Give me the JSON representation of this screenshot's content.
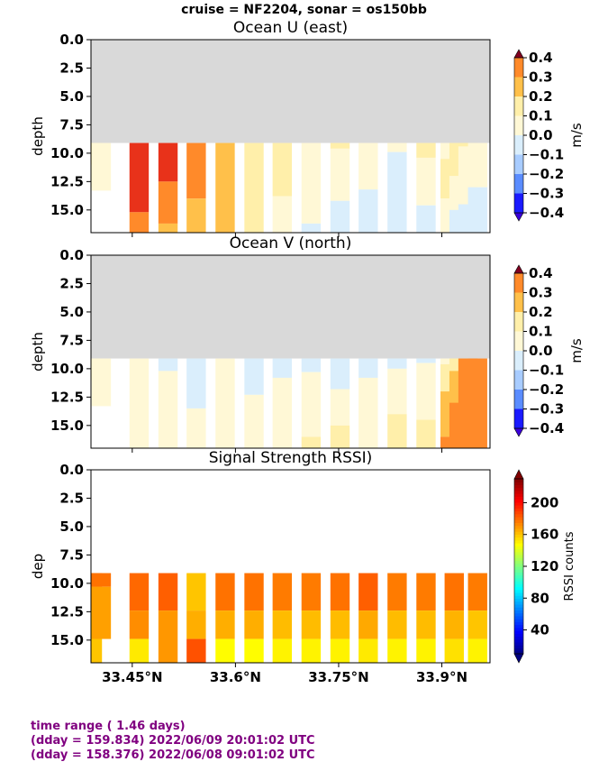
{
  "suptitle": "cruise = NF2204,  sonar = os150bb",
  "footer": {
    "line1": "time range ( 1.46 days)",
    "line2": "(dday = 159.834) 2022/06/09 20:01:02 UTC",
    "line3": "(dday = 158.376) 2022/06/08 09:01:02 UTC"
  },
  "colors": {
    "missing": "#d9d9d9",
    "velocity_levels": [
      "#3a00d9",
      "#1a1aff",
      "#5a8cff",
      "#a8ccff",
      "#daeefc",
      "#fff8d6",
      "#ffefaa",
      "#ffc04a",
      "#ff8a2a",
      "#e8321a",
      "#800020"
    ],
    "velocity_bounds": [
      -0.4,
      -0.3,
      -0.2,
      -0.1,
      0.0,
      0.1,
      0.2,
      0.3,
      0.4
    ]
  },
  "chart_data": [
    {
      "type": "heatmap",
      "title": "Ocean U (east)",
      "ylabel": "depth",
      "colorbar_label": "m/s",
      "colorbar_ticks": [
        "0.4",
        "0.3",
        "0.2",
        "0.1",
        "0.0",
        "−0.1",
        "−0.2",
        "−0.3",
        "−0.4"
      ],
      "xlim": [
        33.39,
        33.97
      ],
      "ylim": [
        17,
        0
      ],
      "yticks": [
        "0.0",
        "2.5",
        "5.0",
        "7.5",
        "10.0",
        "12.5",
        "15.0"
      ],
      "data_depth_range": [
        9.1,
        17
      ],
      "profiles": [
        {
          "lat": 33.392,
          "segments": [
            [
              9.1,
              11.0,
              0.15
            ],
            [
              11.0,
              13.0,
              0.05
            ]
          ]
        },
        {
          "lat": 33.405,
          "segments": [
            [
              9.1,
              13.3,
              0.05
            ]
          ]
        },
        {
          "lat": 33.46,
          "segments": [
            [
              9.1,
              15.2,
              0.45
            ],
            [
              15.2,
              17,
              0.35
            ]
          ]
        },
        {
          "lat": 33.502,
          "segments": [
            [
              9.1,
              12.5,
              0.45
            ],
            [
              12.5,
              16.2,
              0.35
            ],
            [
              16.2,
              17,
              0.25
            ]
          ]
        },
        {
          "lat": 33.543,
          "segments": [
            [
              9.1,
              14.0,
              0.35
            ],
            [
              14.0,
              17,
              0.25
            ]
          ]
        },
        {
          "lat": 33.585,
          "segments": [
            [
              9.1,
              17,
              0.25
            ]
          ]
        },
        {
          "lat": 33.627,
          "segments": [
            [
              9.1,
              17,
              0.15
            ]
          ]
        },
        {
          "lat": 33.668,
          "segments": [
            [
              9.1,
              13.8,
              0.15
            ],
            [
              13.8,
              17,
              0.05
            ]
          ]
        },
        {
          "lat": 33.71,
          "segments": [
            [
              9.1,
              16.2,
              0.05
            ],
            [
              16.2,
              17,
              -0.05
            ]
          ]
        },
        {
          "lat": 33.752,
          "segments": [
            [
              9.1,
              9.6,
              0.15
            ],
            [
              9.6,
              14.2,
              0.05
            ],
            [
              14.2,
              17,
              -0.05
            ]
          ]
        },
        {
          "lat": 33.793,
          "segments": [
            [
              9.1,
              13.2,
              0.05
            ],
            [
              13.2,
              17,
              -0.05
            ]
          ]
        },
        {
          "lat": 33.835,
          "segments": [
            [
              9.1,
              9.9,
              0.05
            ],
            [
              9.9,
              17,
              -0.05
            ]
          ]
        },
        {
          "lat": 33.877,
          "segments": [
            [
              9.1,
              10.4,
              0.15
            ],
            [
              10.4,
              14.6,
              0.05
            ],
            [
              14.6,
              17,
              -0.05
            ]
          ]
        },
        {
          "lat": 33.912,
          "segments": [
            [
              9.1,
              10.5,
              0.05
            ],
            [
              10.5,
              14.0,
              0.15
            ],
            [
              14.0,
              17,
              0.05
            ]
          ]
        },
        {
          "lat": 33.925,
          "segments": [
            [
              9.1,
              12.0,
              0.15
            ],
            [
              12.0,
              15.0,
              0.05
            ],
            [
              15.0,
              17,
              -0.05
            ]
          ]
        },
        {
          "lat": 33.938,
          "segments": [
            [
              9.1,
              9.4,
              0.15
            ],
            [
              9.4,
              14.5,
              0.05
            ],
            [
              14.5,
              17,
              -0.05
            ]
          ]
        },
        {
          "lat": 33.952,
          "segments": [
            [
              9.1,
              13.0,
              0.05
            ],
            [
              13.0,
              17,
              -0.05
            ]
          ]
        }
      ]
    },
    {
      "type": "heatmap",
      "title": "Ocean V (north)",
      "ylabel": "depth",
      "colorbar_label": "m/s",
      "colorbar_ticks": [
        "0.4",
        "0.3",
        "0.2",
        "0.1",
        "0.0",
        "−0.1",
        "−0.2",
        "−0.3",
        "−0.4"
      ],
      "xlim": [
        33.39,
        33.97
      ],
      "ylim": [
        17,
        0
      ],
      "yticks": [
        "0.0",
        "2.5",
        "5.0",
        "7.5",
        "10.0",
        "12.5",
        "15.0"
      ],
      "data_depth_range": [
        9.1,
        17
      ],
      "profiles": [
        {
          "lat": 33.392,
          "segments": [
            [
              9.1,
              11.0,
              0.05
            ]
          ]
        },
        {
          "lat": 33.405,
          "segments": [
            [
              9.1,
              13.3,
              0.05
            ]
          ]
        },
        {
          "lat": 33.46,
          "segments": [
            [
              9.1,
              17,
              0.05
            ]
          ]
        },
        {
          "lat": 33.502,
          "segments": [
            [
              9.1,
              10.2,
              -0.05
            ],
            [
              10.2,
              17,
              0.05
            ]
          ]
        },
        {
          "lat": 33.543,
          "segments": [
            [
              9.1,
              13.5,
              -0.05
            ],
            [
              13.5,
              17,
              0.05
            ]
          ]
        },
        {
          "lat": 33.585,
          "segments": [
            [
              9.1,
              17,
              0.05
            ]
          ]
        },
        {
          "lat": 33.627,
          "segments": [
            [
              9.1,
              12.3,
              -0.05
            ],
            [
              12.3,
              17,
              0.05
            ]
          ]
        },
        {
          "lat": 33.668,
          "segments": [
            [
              9.1,
              10.8,
              -0.05
            ],
            [
              10.8,
              17,
              0.05
            ]
          ]
        },
        {
          "lat": 33.71,
          "segments": [
            [
              9.1,
              10.3,
              -0.05
            ],
            [
              10.3,
              16.0,
              0.05
            ],
            [
              16.0,
              17,
              0.15
            ]
          ]
        },
        {
          "lat": 33.752,
          "segments": [
            [
              9.1,
              11.8,
              -0.05
            ],
            [
              11.8,
              15.0,
              0.05
            ],
            [
              15.0,
              17,
              0.15
            ]
          ]
        },
        {
          "lat": 33.793,
          "segments": [
            [
              9.1,
              10.8,
              -0.05
            ],
            [
              10.8,
              17,
              0.05
            ]
          ]
        },
        {
          "lat": 33.835,
          "segments": [
            [
              9.1,
              10.0,
              -0.05
            ],
            [
              10.0,
              14.0,
              0.05
            ],
            [
              14.0,
              17,
              0.15
            ]
          ]
        },
        {
          "lat": 33.877,
          "segments": [
            [
              9.1,
              9.5,
              -0.05
            ],
            [
              9.5,
              14.5,
              0.05
            ],
            [
              14.5,
              17,
              0.15
            ]
          ]
        },
        {
          "lat": 33.912,
          "segments": [
            [
              9.1,
              9.6,
              0.05
            ],
            [
              9.6,
              12.0,
              0.15
            ],
            [
              12.0,
              16.0,
              0.25
            ],
            [
              16.0,
              17,
              0.35
            ]
          ]
        },
        {
          "lat": 33.925,
          "segments": [
            [
              9.1,
              10.2,
              0.15
            ],
            [
              10.2,
              13.0,
              0.25
            ],
            [
              13.0,
              17,
              0.35
            ]
          ]
        },
        {
          "lat": 33.938,
          "segments": [
            [
              9.1,
              17,
              0.35
            ]
          ]
        },
        {
          "lat": 33.952,
          "segments": [
            [
              9.1,
              17,
              0.35
            ]
          ]
        }
      ]
    },
    {
      "type": "heatmap",
      "title": "Signal Strength RSSI)",
      "ylabel": "dep",
      "colorbar_label": "RSSI counts",
      "colorbar_ticks": [
        "200",
        "160",
        "120",
        "80",
        "40"
      ],
      "colorbar_range": [
        10,
        230
      ],
      "xlim": [
        33.39,
        33.97
      ],
      "ylim": [
        17,
        0
      ],
      "yticks": [
        "0.0",
        "2.5",
        "5.0",
        "7.5",
        "10.0",
        "12.5",
        "15.0"
      ],
      "xticks": [
        "33.45°N",
        "33.6°N",
        "33.75°N",
        "33.9°N"
      ],
      "xtick_values": [
        33.45,
        33.6,
        33.75,
        33.9
      ],
      "data_depth_range": [
        9.1,
        17
      ],
      "profiles": [
        {
          "lat": 33.392,
          "segments": [
            [
              9.1,
              10.3,
              178
            ],
            [
              10.3,
              12.4,
              170
            ],
            [
              12.4,
              17,
              160
            ]
          ]
        },
        {
          "lat": 33.405,
          "segments": [
            [
              9.1,
              10.3,
              178
            ],
            [
              10.3,
              14.9,
              168
            ]
          ]
        },
        {
          "lat": 33.46,
          "segments": [
            [
              9.1,
              12.4,
              180
            ],
            [
              12.4,
              14.9,
              172
            ],
            [
              14.9,
              17,
              152
            ]
          ]
        },
        {
          "lat": 33.502,
          "segments": [
            [
              9.1,
              12.4,
              182
            ],
            [
              12.4,
              17,
              170
            ]
          ]
        },
        {
          "lat": 33.543,
          "segments": [
            [
              9.1,
              12.4,
              160
            ],
            [
              12.4,
              14.9,
              165
            ],
            [
              14.9,
              17,
              185
            ]
          ]
        },
        {
          "lat": 33.585,
          "segments": [
            [
              9.1,
              12.4,
              178
            ],
            [
              12.4,
              14.9,
              165
            ],
            [
              14.9,
              17,
              148
            ]
          ]
        },
        {
          "lat": 33.627,
          "segments": [
            [
              9.1,
              12.4,
              178
            ],
            [
              12.4,
              14.9,
              165
            ],
            [
              14.9,
              17,
              148
            ]
          ]
        },
        {
          "lat": 33.668,
          "segments": [
            [
              9.1,
              12.4,
              176
            ],
            [
              12.4,
              14.9,
              162
            ],
            [
              14.9,
              17,
              150
            ]
          ]
        },
        {
          "lat": 33.71,
          "segments": [
            [
              9.1,
              12.4,
              176
            ],
            [
              12.4,
              14.9,
              162
            ],
            [
              14.9,
              17,
              150
            ]
          ]
        },
        {
          "lat": 33.752,
          "segments": [
            [
              9.1,
              12.4,
              178
            ],
            [
              12.4,
              14.9,
              162
            ],
            [
              14.9,
              17,
              150
            ]
          ]
        },
        {
          "lat": 33.793,
          "segments": [
            [
              9.1,
              12.4,
              182
            ],
            [
              12.4,
              14.9,
              166
            ],
            [
              14.9,
              17,
              152
            ]
          ]
        },
        {
          "lat": 33.835,
          "segments": [
            [
              9.1,
              12.4,
              176
            ],
            [
              12.4,
              14.9,
              162
            ],
            [
              14.9,
              17,
              150
            ]
          ]
        },
        {
          "lat": 33.877,
          "segments": [
            [
              9.1,
              12.4,
              176
            ],
            [
              12.4,
              14.9,
              162
            ],
            [
              14.9,
              17,
              150
            ]
          ]
        },
        {
          "lat": 33.918,
          "segments": [
            [
              9.1,
              12.4,
              178
            ],
            [
              12.4,
              14.9,
              164
            ],
            [
              14.9,
              17,
              154
            ]
          ]
        },
        {
          "lat": 33.952,
          "segments": [
            [
              9.1,
              12.4,
              176
            ],
            [
              12.4,
              14.9,
              160
            ],
            [
              14.9,
              17,
              150
            ]
          ]
        }
      ]
    }
  ]
}
